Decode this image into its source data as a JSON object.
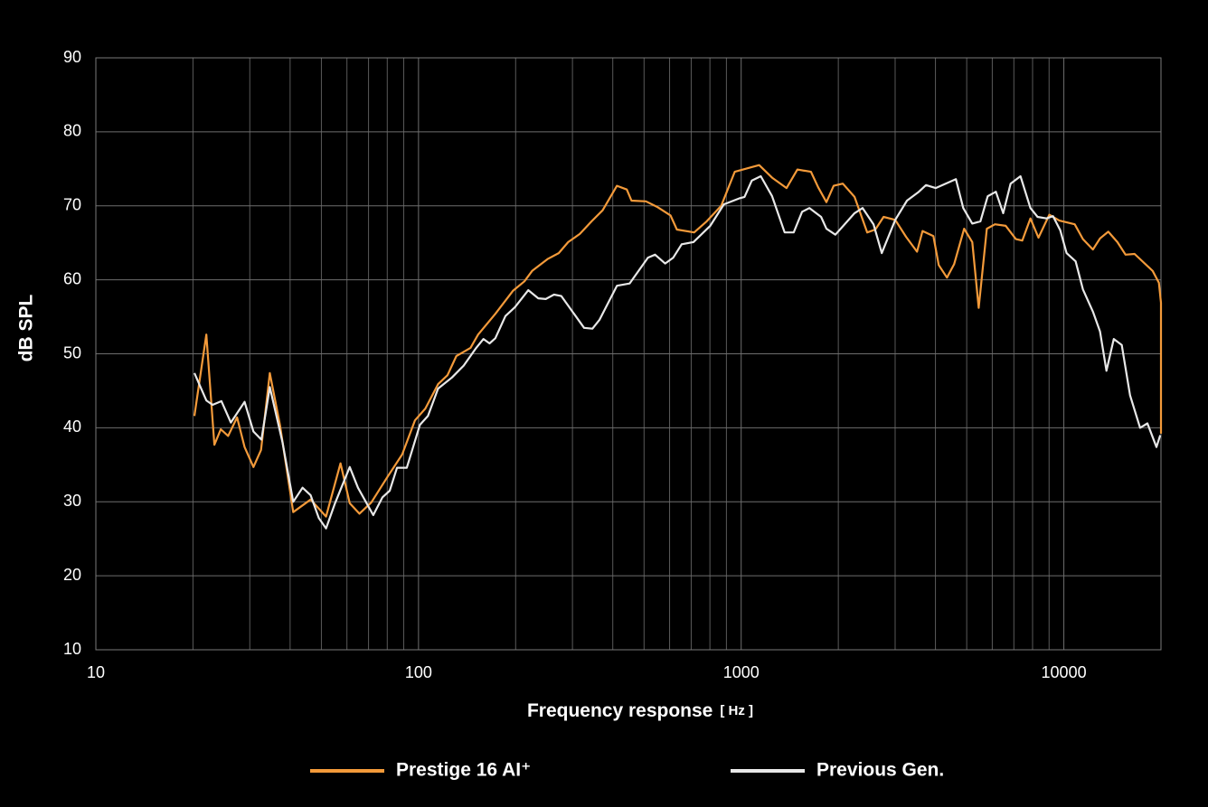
{
  "chart_data": {
    "type": "line",
    "xlabel": "Frequency response",
    "xlabel_unit": "[ Hz ]",
    "ylabel": "dB SPL",
    "xscale": "log",
    "xlim": [
      10,
      20000
    ],
    "ylim": [
      10,
      90
    ],
    "xticks": [
      10,
      100,
      1000,
      10000
    ],
    "xminor_ticks": [
      20,
      30,
      40,
      50,
      60,
      70,
      80,
      90,
      200,
      300,
      400,
      500,
      600,
      700,
      800,
      900,
      2000,
      3000,
      4000,
      5000,
      6000,
      7000,
      8000,
      9000
    ],
    "yticks": [
      10,
      20,
      30,
      40,
      50,
      60,
      70,
      80,
      90
    ],
    "grid": true,
    "legend": "bottom",
    "series": [
      {
        "name": "Prestige 16 AI⁺",
        "color": "#f39a3a",
        "x": [
          20.2,
          22.0,
          23.3,
          24.4,
          25.7,
          27.4,
          28.9,
          30.8,
          32.5,
          34.6,
          37.2,
          40.9,
          46.3,
          51.7,
          57.3,
          61.2,
          65.6,
          71.4,
          80.2,
          89.0,
          97.5,
          105,
          115,
          123,
          131,
          145,
          153,
          173,
          196,
          213,
          225,
          251,
          272,
          291,
          316,
          344,
          372,
          412,
          442,
          457,
          507,
          552,
          604,
          632,
          715,
          782,
          867,
          955,
          1137,
          1247,
          1382,
          1494,
          1645,
          1733,
          1837,
          1935,
          2065,
          2245,
          2458,
          2605,
          2762,
          3003,
          3245,
          3508,
          3648,
          3943,
          4096,
          4343,
          4571,
          4909,
          5203,
          5445,
          5772,
          6118,
          6607,
          7101,
          7432,
          7875,
          8345,
          9016,
          9683,
          10810,
          11460,
          12300,
          12950,
          13730,
          14650,
          15530,
          16570,
          18850,
          19700,
          20000,
          20000
        ],
        "values": [
          41.6,
          52.6,
          37.7,
          39.8,
          38.9,
          41.4,
          37.4,
          34.7,
          37.0,
          47.4,
          40.4,
          28.6,
          30.3,
          28.0,
          35.2,
          29.8,
          28.4,
          29.9,
          33.4,
          36.4,
          41.0,
          42.6,
          45.9,
          47.1,
          49.7,
          50.8,
          52.6,
          55.4,
          58.5,
          59.8,
          61.2,
          62.8,
          63.6,
          65.1,
          66.2,
          67.9,
          69.4,
          72.7,
          72.2,
          70.7,
          70.6,
          69.8,
          68.7,
          66.8,
          66.4,
          67.9,
          70.0,
          74.6,
          75.5,
          73.8,
          72.4,
          74.9,
          74.6,
          72.5,
          70.5,
          72.7,
          73.0,
          71.2,
          66.4,
          66.8,
          68.5,
          68.1,
          65.8,
          63.8,
          66.6,
          65.9,
          62.0,
          60.3,
          62.1,
          66.9,
          65.1,
          56.2,
          66.9,
          67.5,
          67.3,
          65.5,
          65.3,
          68.3,
          65.7,
          68.8,
          68.0,
          67.5,
          65.5,
          64.1,
          65.6,
          66.5,
          65.1,
          63.4,
          63.5,
          61.2,
          59.6,
          56.9,
          39.2
        ]
      },
      {
        "name": "Previous Gen.",
        "color": "#e8e8e8",
        "x": [
          20.2,
          22.0,
          23.0,
          24.5,
          26.2,
          28.9,
          30.8,
          32.6,
          34.6,
          37.9,
          40.9,
          43.7,
          46.3,
          49.1,
          51.7,
          55.1,
          61.2,
          64.9,
          72.4,
          77.3,
          81.4,
          85.8,
          92.0,
          101,
          107,
          115,
          127,
          138,
          151,
          159,
          166,
          173,
          186,
          199,
          219,
          235,
          248,
          263,
          277,
          326,
          346,
          364,
          412,
          451,
          514,
          541,
          581,
          616,
          654,
          711,
          802,
          884,
          985,
          1024,
          1078,
          1150,
          1247,
          1364,
          1455,
          1545,
          1627,
          1769,
          1837,
          1958,
          2245,
          2378,
          2571,
          2727,
          3003,
          3265,
          3553,
          3738,
          4005,
          4629,
          4876,
          5203,
          5512,
          5808,
          6157,
          6488,
          6838,
          7340,
          7875,
          8292,
          8838,
          9254,
          9745,
          10200,
          10880,
          11460,
          12300,
          12950,
          13550,
          14280,
          15120,
          16040,
          17230,
          18150,
          19360,
          19900
        ],
        "values": [
          47.4,
          43.7,
          43.1,
          43.6,
          40.7,
          43.5,
          39.5,
          38.4,
          45.5,
          38.0,
          30.0,
          31.9,
          30.9,
          27.8,
          26.4,
          29.8,
          34.7,
          31.9,
          28.2,
          30.6,
          31.5,
          34.6,
          34.6,
          40.4,
          41.6,
          45.3,
          46.8,
          48.4,
          50.8,
          52.0,
          51.4,
          52.1,
          55.1,
          56.3,
          58.6,
          57.5,
          57.4,
          58.0,
          57.8,
          53.5,
          53.4,
          54.6,
          59.2,
          59.5,
          63.0,
          63.4,
          62.2,
          63.0,
          64.8,
          65.1,
          67.3,
          70.2,
          71.0,
          71.2,
          73.4,
          74.0,
          71.3,
          66.4,
          66.4,
          69.2,
          69.7,
          68.5,
          66.9,
          66.1,
          69.0,
          69.7,
          67.5,
          63.6,
          68.1,
          70.7,
          71.9,
          72.8,
          72.4,
          73.6,
          69.7,
          67.6,
          67.9,
          71.3,
          71.9,
          69.0,
          73.0,
          74.0,
          69.7,
          68.5,
          68.3,
          68.6,
          66.7,
          63.6,
          62.5,
          58.7,
          55.7,
          53.0,
          47.7,
          52.0,
          51.2,
          44.4,
          40.0,
          40.6,
          37.4,
          39.0
        ]
      }
    ]
  }
}
